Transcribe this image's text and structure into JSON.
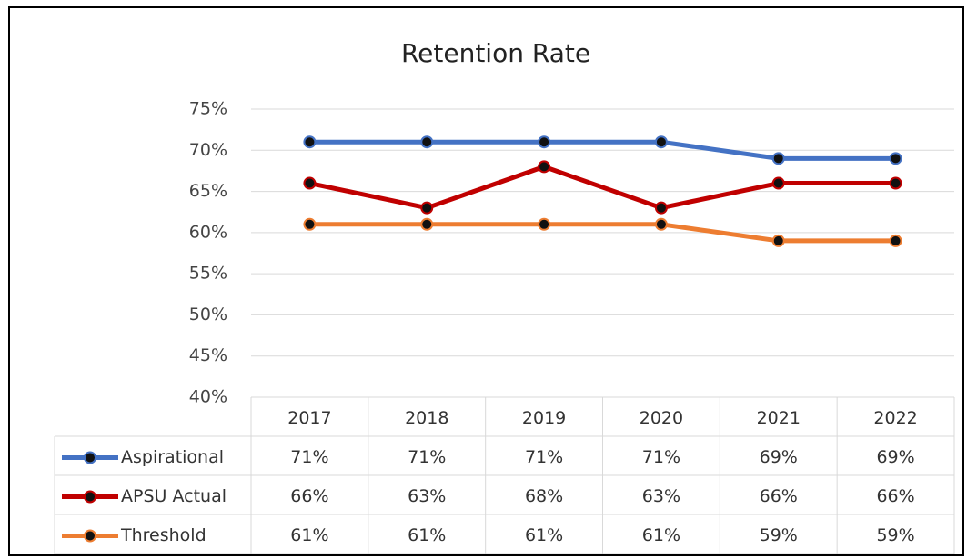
{
  "chart_data": {
    "type": "line",
    "title": "Retention Rate",
    "categories": [
      "2017",
      "2018",
      "2019",
      "2020",
      "2021",
      "2022"
    ],
    "series": [
      {
        "name": "Aspirational",
        "color": "#4472c4",
        "values": [
          71,
          71,
          71,
          71,
          69,
          69
        ],
        "value_labels": [
          "71%",
          "71%",
          "71%",
          "71%",
          "69%",
          "69%"
        ]
      },
      {
        "name": "APSU Actual",
        "color": "#c00000",
        "values": [
          66,
          63,
          68,
          63,
          66,
          66
        ],
        "value_labels": [
          "66%",
          "63%",
          "68%",
          "63%",
          "66%",
          "66%"
        ]
      },
      {
        "name": "Threshold",
        "color": "#ed7d31",
        "values": [
          61,
          61,
          61,
          61,
          59,
          59
        ],
        "value_labels": [
          "61%",
          "61%",
          "61%",
          "61%",
          "59%",
          "59%"
        ]
      }
    ],
    "ylim": [
      40,
      75
    ],
    "yticks": [
      {
        "value": 40,
        "label": "40%"
      },
      {
        "value": 45,
        "label": "45%"
      },
      {
        "value": 50,
        "label": "50%"
      },
      {
        "value": 55,
        "label": "55%"
      },
      {
        "value": 60,
        "label": "60%"
      },
      {
        "value": 65,
        "label": "65%"
      },
      {
        "value": 70,
        "label": "70%"
      },
      {
        "value": 75,
        "label": "75%"
      }
    ],
    "grid": true
  }
}
